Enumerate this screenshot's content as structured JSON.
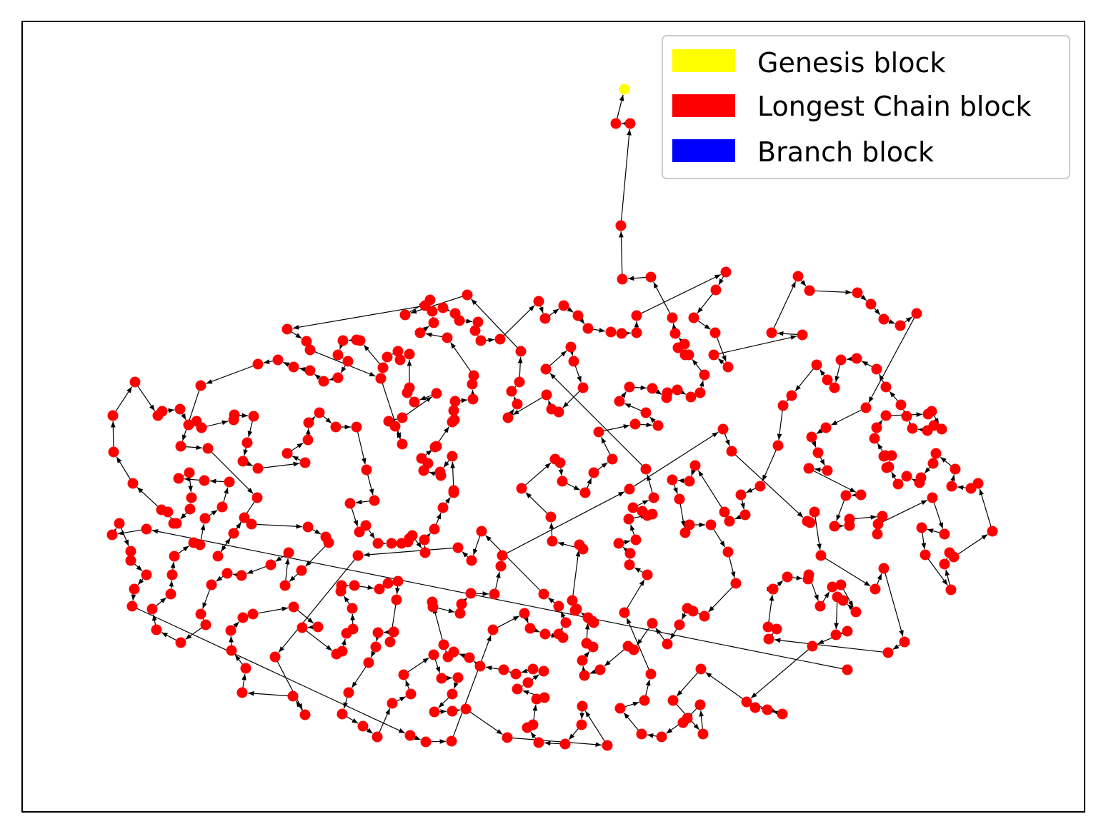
{
  "legend": {
    "items": [
      {
        "label": "Genesis block",
        "color": "#ffff00"
      },
      {
        "label": "Longest Chain block",
        "color": "#ff0000"
      },
      {
        "label": "Branch block",
        "color": "#0000ff"
      }
    ]
  },
  "colors": {
    "edge": "#000000",
    "frame": "#000000"
  }
}
